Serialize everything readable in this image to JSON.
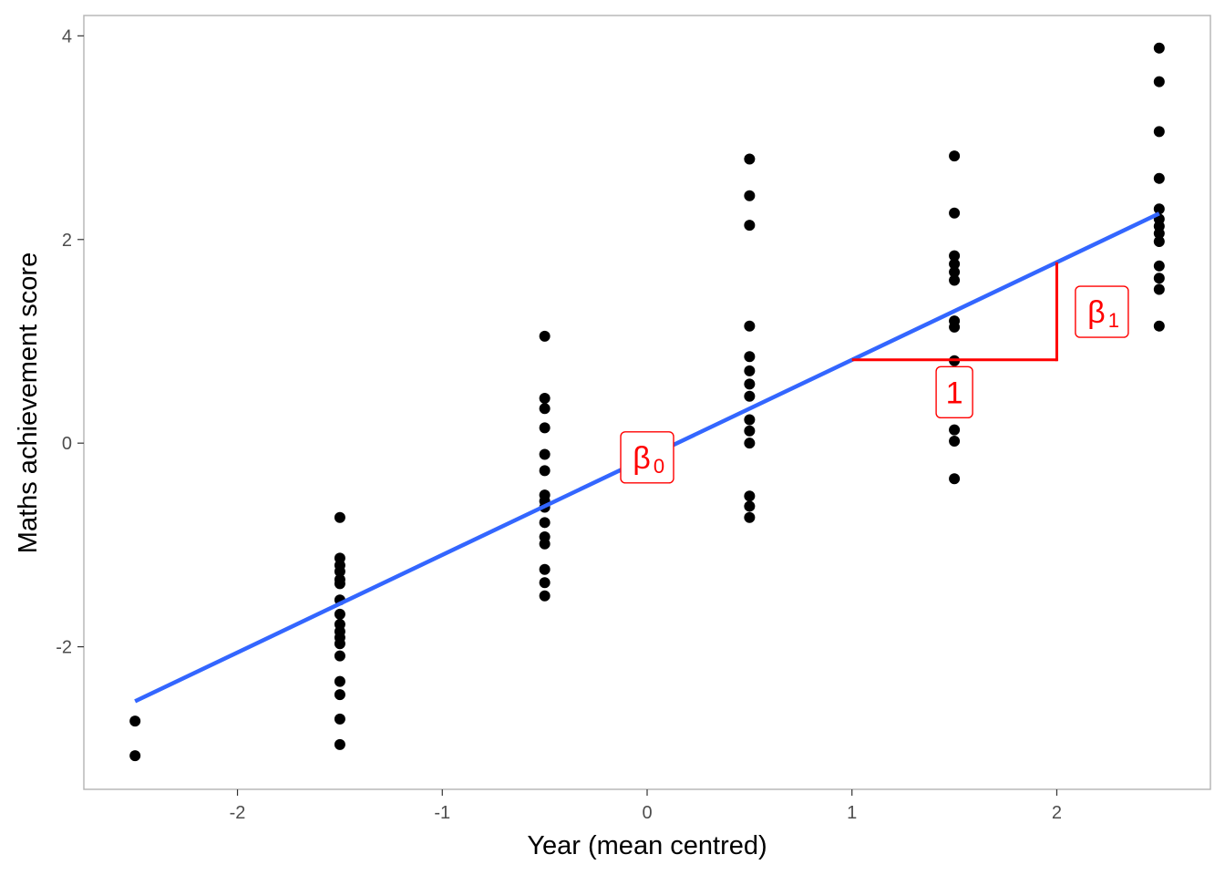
{
  "chart_data": {
    "type": "scatter",
    "xlabel": "Year (mean centred)",
    "ylabel": "Maths achievement score",
    "xlim": [
      -2.75,
      2.75
    ],
    "ylim": [
      -3.4,
      4.2
    ],
    "x_ticks": [
      -2,
      -1,
      0,
      1,
      2
    ],
    "x_tick_labels": [
      "-2",
      "-1",
      "0",
      "1",
      "2"
    ],
    "y_ticks": [
      -2,
      0,
      2,
      4
    ],
    "y_tick_labels": [
      "-2",
      "0",
      "2",
      "4"
    ],
    "grid": false,
    "points": [
      {
        "x": -2.5,
        "y": -2.73
      },
      {
        "x": -2.5,
        "y": -3.07
      },
      {
        "x": -1.5,
        "y": -0.73
      },
      {
        "x": -1.5,
        "y": -1.13
      },
      {
        "x": -1.5,
        "y": -1.2
      },
      {
        "x": -1.5,
        "y": -1.26
      },
      {
        "x": -1.5,
        "y": -1.34
      },
      {
        "x": -1.5,
        "y": -1.38
      },
      {
        "x": -1.5,
        "y": -1.54
      },
      {
        "x": -1.5,
        "y": -1.68
      },
      {
        "x": -1.5,
        "y": -1.78
      },
      {
        "x": -1.5,
        "y": -1.85
      },
      {
        "x": -1.5,
        "y": -1.91
      },
      {
        "x": -1.5,
        "y": -1.97
      },
      {
        "x": -1.5,
        "y": -2.09
      },
      {
        "x": -1.5,
        "y": -2.34
      },
      {
        "x": -1.5,
        "y": -2.47
      },
      {
        "x": -1.5,
        "y": -2.71
      },
      {
        "x": -1.5,
        "y": -2.96
      },
      {
        "x": -0.5,
        "y": 1.05
      },
      {
        "x": -0.5,
        "y": 0.44
      },
      {
        "x": -0.5,
        "y": 0.34
      },
      {
        "x": -0.5,
        "y": 0.15
      },
      {
        "x": -0.5,
        "y": -0.11
      },
      {
        "x": -0.5,
        "y": -0.27
      },
      {
        "x": -0.5,
        "y": -0.51
      },
      {
        "x": -0.5,
        "y": -0.57
      },
      {
        "x": -0.5,
        "y": -0.63
      },
      {
        "x": -0.5,
        "y": -0.78
      },
      {
        "x": -0.5,
        "y": -0.92
      },
      {
        "x": -0.5,
        "y": -0.99
      },
      {
        "x": -0.5,
        "y": -1.24
      },
      {
        "x": -0.5,
        "y": -1.37
      },
      {
        "x": -0.5,
        "y": -1.5
      },
      {
        "x": 0.5,
        "y": 2.79
      },
      {
        "x": 0.5,
        "y": 2.43
      },
      {
        "x": 0.5,
        "y": 2.14
      },
      {
        "x": 0.5,
        "y": 1.15
      },
      {
        "x": 0.5,
        "y": 0.85
      },
      {
        "x": 0.5,
        "y": 0.71
      },
      {
        "x": 0.5,
        "y": 0.58
      },
      {
        "x": 0.5,
        "y": 0.46
      },
      {
        "x": 0.5,
        "y": 0.23
      },
      {
        "x": 0.5,
        "y": 0.12
      },
      {
        "x": 0.5,
        "y": 0.0
      },
      {
        "x": 0.5,
        "y": -0.52
      },
      {
        "x": 0.5,
        "y": -0.62
      },
      {
        "x": 0.5,
        "y": -0.73
      },
      {
        "x": 1.5,
        "y": 2.82
      },
      {
        "x": 1.5,
        "y": 2.26
      },
      {
        "x": 1.5,
        "y": 1.84
      },
      {
        "x": 1.5,
        "y": 1.76
      },
      {
        "x": 1.5,
        "y": 1.68
      },
      {
        "x": 1.5,
        "y": 1.6
      },
      {
        "x": 1.5,
        "y": 1.2
      },
      {
        "x": 1.5,
        "y": 1.14
      },
      {
        "x": 1.5,
        "y": 0.81
      },
      {
        "x": 1.5,
        "y": 0.13
      },
      {
        "x": 1.5,
        "y": 0.02
      },
      {
        "x": 1.5,
        "y": -0.35
      },
      {
        "x": 2.5,
        "y": 3.88
      },
      {
        "x": 2.5,
        "y": 3.55
      },
      {
        "x": 2.5,
        "y": 3.06
      },
      {
        "x": 2.5,
        "y": 2.6
      },
      {
        "x": 2.5,
        "y": 2.3
      },
      {
        "x": 2.5,
        "y": 2.2
      },
      {
        "x": 2.5,
        "y": 2.13
      },
      {
        "x": 2.5,
        "y": 2.06
      },
      {
        "x": 2.5,
        "y": 1.98
      },
      {
        "x": 2.5,
        "y": 1.74
      },
      {
        "x": 2.5,
        "y": 1.62
      },
      {
        "x": 2.5,
        "y": 1.51
      },
      {
        "x": 2.5,
        "y": 1.15
      }
    ],
    "regression_line": {
      "intercept": -0.14,
      "slope": 0.958,
      "x_range": [
        -2.5,
        2.5
      ],
      "color": "#3366ff"
    },
    "slope_triangle": {
      "x_start": 1,
      "x_end": 2,
      "color": "#ff0000"
    },
    "annotations": [
      {
        "label": "β",
        "subscript": "0",
        "x": 0.0,
        "y": -0.14,
        "color": "#ff0000"
      },
      {
        "label": "1",
        "subscript": "",
        "x": 1.5,
        "y": 0.5,
        "color": "#ff0000"
      },
      {
        "label": "β",
        "subscript": "1",
        "x": 2.22,
        "y": 1.29,
        "color": "#ff0000"
      }
    ]
  }
}
